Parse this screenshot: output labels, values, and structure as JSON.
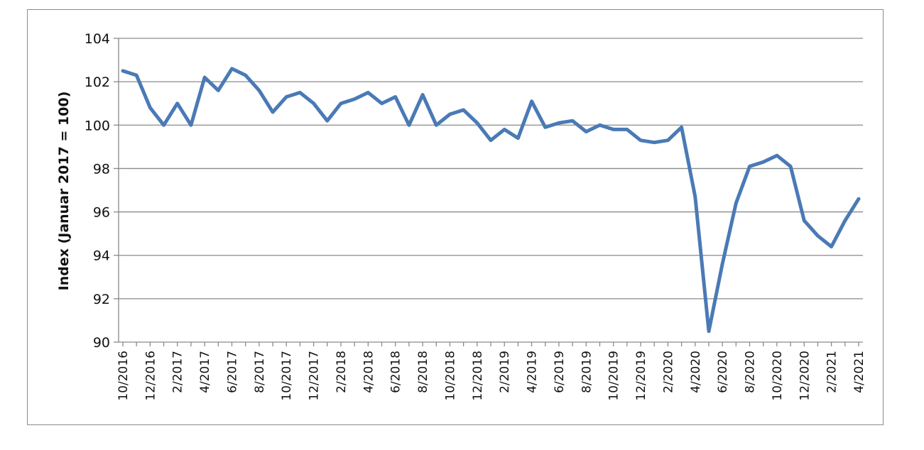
{
  "colors": {
    "series": "#4a7ab6",
    "grid": "#8a8a8a",
    "text": "#111111"
  },
  "chart_data": {
    "type": "line",
    "title": "",
    "xlabel": "",
    "ylabel": "Index (Januar 2017 = 100)",
    "ylim": [
      90,
      104
    ],
    "yticks": [
      90,
      92,
      94,
      96,
      98,
      100,
      102,
      104
    ],
    "grid": true,
    "legend": "none",
    "x": [
      "10/2016",
      "11/2016",
      "12/2016",
      "1/2017",
      "2/2017",
      "3/2017",
      "4/2017",
      "5/2017",
      "6/2017",
      "7/2017",
      "8/2017",
      "9/2017",
      "10/2017",
      "11/2017",
      "12/2017",
      "1/2018",
      "2/2018",
      "3/2018",
      "4/2018",
      "5/2018",
      "6/2018",
      "7/2018",
      "8/2018",
      "9/2018",
      "10/2018",
      "11/2018",
      "12/2018",
      "1/2019",
      "2/2019",
      "3/2019",
      "4/2019",
      "5/2019",
      "6/2019",
      "7/2019",
      "8/2019",
      "9/2019",
      "10/2019",
      "11/2019",
      "12/2019",
      "1/2020",
      "2/2020",
      "3/2020",
      "4/2020",
      "5/2020",
      "6/2020",
      "7/2020",
      "8/2020",
      "9/2020",
      "10/2020",
      "11/2020",
      "12/2020",
      "1/2021",
      "2/2021",
      "3/2021",
      "4/2021"
    ],
    "xtick_labels": [
      "10/2016",
      "12/2016",
      "2/2017",
      "4/2017",
      "6/2017",
      "8/2017",
      "10/2017",
      "12/2017",
      "2/2018",
      "4/2018",
      "6/2018",
      "8/2018",
      "10/2018",
      "12/2018",
      "2/2019",
      "4/2019",
      "6/2019",
      "8/2019",
      "10/2019",
      "12/2019",
      "2/2020",
      "4/2020",
      "6/2020",
      "8/2020",
      "10/2020",
      "12/2020",
      "2/2021",
      "4/2021"
    ],
    "series": [
      {
        "name": "",
        "values": [
          102.5,
          102.3,
          100.8,
          100.0,
          101.0,
          100.0,
          102.2,
          101.6,
          102.6,
          102.3,
          101.6,
          100.6,
          101.3,
          101.5,
          101.0,
          100.2,
          101.0,
          101.2,
          101.5,
          101.0,
          101.3,
          100.0,
          101.4,
          100.0,
          100.5,
          100.7,
          100.1,
          99.3,
          99.8,
          99.4,
          101.1,
          99.9,
          100.1,
          100.2,
          99.7,
          100.0,
          99.8,
          99.8,
          99.3,
          99.2,
          99.3,
          99.9,
          96.7,
          90.5,
          93.6,
          96.4,
          98.1,
          98.3,
          98.6,
          98.1,
          95.6,
          94.9,
          94.4,
          95.6,
          96.6
        ]
      }
    ]
  }
}
